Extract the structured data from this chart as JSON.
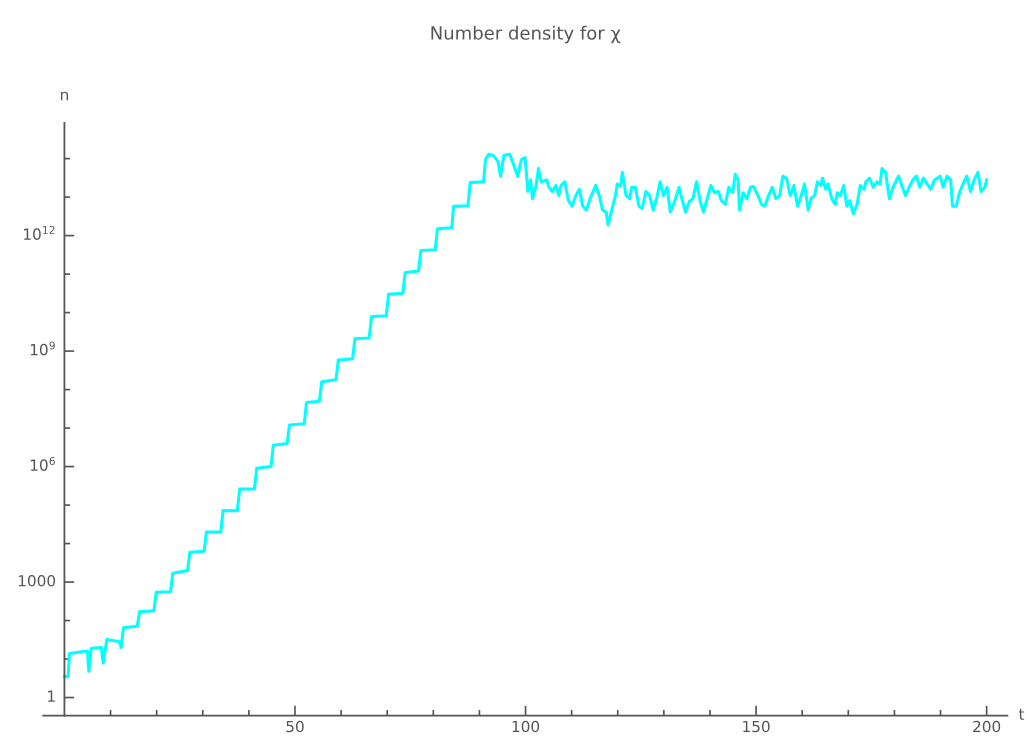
{
  "chart_data": {
    "type": "line",
    "title": "Number density for χ",
    "xlabel": "t",
    "ylabel": "n",
    "log": "y",
    "grid": false,
    "marker": "none",
    "line_style": "solid",
    "xlim": [
      -4.6,
      204.5
    ],
    "ylim": [
      0.34,
      850000000000000.0
    ],
    "xticks": [
      {
        "value": 10,
        "label": null
      },
      {
        "value": 20,
        "label": null
      },
      {
        "value": 30,
        "label": null
      },
      {
        "value": 40,
        "label": null
      },
      50,
      {
        "value": 60,
        "label": null
      },
      {
        "value": 70,
        "label": null
      },
      {
        "value": 80,
        "label": null
      },
      {
        "value": 90,
        "label": null
      },
      100,
      {
        "value": 110,
        "label": null
      },
      {
        "value": 120,
        "label": null
      },
      {
        "value": 130,
        "label": null
      },
      {
        "value": 140,
        "label": null
      },
      150,
      {
        "value": 160,
        "label": null
      },
      {
        "value": 170,
        "label": null
      },
      {
        "value": 180,
        "label": null
      },
      {
        "value": 190,
        "label": null
      },
      200
    ],
    "yticks": [
      1,
      {
        "value": 10,
        "label": null
      },
      {
        "value": 100,
        "label": null
      },
      1000,
      {
        "value": 10000.0,
        "label": null
      },
      {
        "value": 100000.0,
        "label": null
      },
      {
        "value": 1000000.0,
        "label": "10$^{6}$"
      },
      {
        "value": 10000000.0,
        "label": null
      },
      {
        "value": 100000000.0,
        "label": null
      },
      {
        "value": 1000000000.0,
        "label": "10$^{9}$"
      },
      {
        "value": 10000000000.0,
        "label": null
      },
      {
        "value": 100000000000.0,
        "label": null
      },
      {
        "value": 1000000000000.0,
        "label": "10$^{12}$"
      },
      {
        "value": 10000000000000.0,
        "label": null
      },
      {
        "value": 100000000000000.0,
        "label": null
      }
    ],
    "series": [
      {
        "color": "#00ffff",
        "x": [
          0,
          0.8,
          1.1,
          4.5,
          5.0,
          5.3,
          5.8,
          8.0,
          8.4,
          9.2,
          12.0,
          12.3,
          12.8,
          15.8,
          16.3,
          19.4,
          19.9,
          23.0,
          23.5,
          26.7,
          27.2,
          30.3,
          30.8,
          33.9,
          34.4,
          37.5,
          38.0,
          41.2,
          41.7,
          44.8,
          45.3,
          48.3,
          48.8,
          52.0,
          52.5,
          55.3,
          55.8,
          58.9,
          59.4,
          62.5,
          63.0,
          66.1,
          66.6,
          69.8,
          70.3,
          73.4,
          73.9,
          76.8,
          77.3,
          80.4,
          80.9,
          84.0,
          84.4,
          87.5,
          88.0,
          90.9,
          91.3,
          92.0,
          93.0,
          94.0,
          94.6,
          95.3,
          96.6,
          97.4,
          98.3,
          99.1,
          99.9,
          100.5,
          101.1,
          101.5,
          102.3,
          102.8,
          103.4,
          104.6,
          105.0,
          105.8,
          106.6,
          107.2,
          107.7,
          108.5,
          109.3,
          110.1,
          110.9,
          111.7,
          112.4,
          113.2,
          114.0,
          115.2,
          116.0,
          116.7,
          117.5,
          117.9,
          118.7,
          119.5,
          119.9,
          120.6,
          121.0,
          121.8,
          122.6,
          123.0,
          123.8,
          124.6,
          125.3,
          126.1,
          126.9,
          127.7,
          128.5,
          129.2,
          129.9,
          130.7,
          131.4,
          132.4,
          133.3,
          133.9,
          134.7,
          135.5,
          136.3,
          137.1,
          137.9,
          138.6,
          139.4,
          140.2,
          141.0,
          141.8,
          142.5,
          143.3,
          144.1,
          144.9,
          145.5,
          146.1,
          146.4,
          147.2,
          148.0,
          148.8,
          149.4,
          150.4,
          151.2,
          151.9,
          152.7,
          153.5,
          154.3,
          155.1,
          155.8,
          156.6,
          157.4,
          158.2,
          159.0,
          159.8,
          160.5,
          161.3,
          161.9,
          162.7,
          163.3,
          164.0,
          164.4,
          165.1,
          165.6,
          166.4,
          167.2,
          167.6,
          168.3,
          169.0,
          169.7,
          170.3,
          171.1,
          171.9,
          172.6,
          173.4,
          173.8,
          174.6,
          175.4,
          176.2,
          176.9,
          177.3,
          178.1,
          178.9,
          179.7,
          180.9,
          181.6,
          182.4,
          183.2,
          184.0,
          184.8,
          185.5,
          186.3,
          187.1,
          187.9,
          188.7,
          189.9,
          190.6,
          191.4,
          192.2,
          192.6,
          193.4,
          194.2,
          194.9,
          195.7,
          196.5,
          197.3,
          198.1,
          198.8,
          199.6,
          200.0
        ],
        "values": [
          3.5,
          3.5,
          14,
          16,
          16,
          4.8,
          19,
          20,
          7.9,
          32,
          28,
          20,
          65,
          71,
          170,
          180,
          540,
          560,
          1700,
          2000,
          5900,
          6300,
          20000,
          20000,
          72000,
          71000,
          260000.0,
          260000.0,
          910000.0,
          1000000.0,
          3600000.0,
          4000000.0,
          12000000.0,
          13000000.0,
          46000000.0,
          50000000.0,
          160000000.0,
          180000000.0,
          590000000.0,
          630000000.0,
          2100000000.0,
          2200000000.0,
          7900000000.0,
          8300000000.0,
          30000000000.0,
          32000000000.0,
          110000000000.0,
          120000000000.0,
          410000000000.0,
          430000000000.0,
          1500000000000.0,
          1600000000000.0,
          5800000000000.0,
          6000000000000.0,
          24000000000000.0,
          25000000000000.0,
          93000000000000.0,
          130000000000000.0,
          120000000000000.0,
          85000000000000.0,
          35000000000000.0,
          120000000000000.0,
          130000000000000.0,
          69000000000000.0,
          35000000000000.0,
          95000000000000.0,
          107000000000000.0,
          14000000000000.0,
          28000000000000.0,
          9100000000000.0,
          20000000000000.0,
          55000000000000.0,
          25000000000000.0,
          28000000000000.0,
          19000000000000.0,
          14000000000000.0,
          20000000000000.0,
          11000000000000.0,
          20000000000000.0,
          25000000000000.0,
          8100000000000.0,
          5800000000000.0,
          11000000000000.0,
          16000000000000.0,
          5800000000000.0,
          4600000000000.0,
          9100000000000.0,
          20000000000000.0,
          11000000000000.0,
          4600000000000.0,
          4100000000000.0,
          1900000000000.0,
          4600000000000.0,
          11000000000000.0,
          22000000000000.0,
          19000000000000.0,
          44000000000000.0,
          11000000000000.0,
          9100000000000.0,
          18000000000000.0,
          18000000000000.0,
          5800000000000.0,
          5100000000000.0,
          14000000000000.0,
          11000000000000.0,
          4600000000000.0,
          10000000000000.0,
          25000000000000.0,
          11000000000000.0,
          18000000000000.0,
          4100000000000.0,
          8100000000000.0,
          18000000000000.0,
          9100000000000.0,
          4100000000000.0,
          7600000000000.0,
          9100000000000.0,
          25000000000000.0,
          7600000000000.0,
          4100000000000.0,
          9100000000000.0,
          20000000000000.0,
          13000000000000.0,
          14000000000000.0,
          8100000000000.0,
          6500000000000.0,
          18000000000000.0,
          13000000000000.0,
          39000000000000.0,
          28000000000000.0,
          4600000000000.0,
          13000000000000.0,
          9100000000000.0,
          18000000000000.0,
          19000000000000.0,
          11000000000000.0,
          6500000000000.0,
          5800000000000.0,
          11000000000000.0,
          18000000000000.0,
          9100000000000.0,
          11000000000000.0,
          35000000000000.0,
          31000000000000.0,
          11000000000000.0,
          20000000000000.0,
          5800000000000.0,
          11000000000000.0,
          22000000000000.0,
          4600000000000.0,
          9100000000000.0,
          11000000000000.0,
          25000000000000.0,
          20000000000000.0,
          31000000000000.0,
          16000000000000.0,
          22000000000000.0,
          9100000000000.0,
          6500000000000.0,
          13000000000000.0,
          11000000000000.0,
          20000000000000.0,
          5800000000000.0,
          8100000000000.0,
          3700000000000.0,
          6500000000000.0,
          20000000000000.0,
          16000000000000.0,
          25000000000000.0,
          31000000000000.0,
          18000000000000.0,
          25000000000000.0,
          22000000000000.0,
          55000000000000.0,
          44000000000000.0,
          9100000000000.0,
          18000000000000.0,
          35000000000000.0,
          20000000000000.0,
          11000000000000.0,
          18000000000000.0,
          28000000000000.0,
          35000000000000.0,
          18000000000000.0,
          31000000000000.0,
          22000000000000.0,
          16000000000000.0,
          28000000000000.0,
          35000000000000.0,
          18000000000000.0,
          35000000000000.0,
          28000000000000.0,
          5800000000000.0,
          5800000000000.0,
          14000000000000.0,
          22000000000000.0,
          35000000000000.0,
          14000000000000.0,
          28000000000000.0,
          44000000000000.0,
          14000000000000.0,
          18000000000000.0,
          28000000000000.0
        ]
      }
    ]
  }
}
